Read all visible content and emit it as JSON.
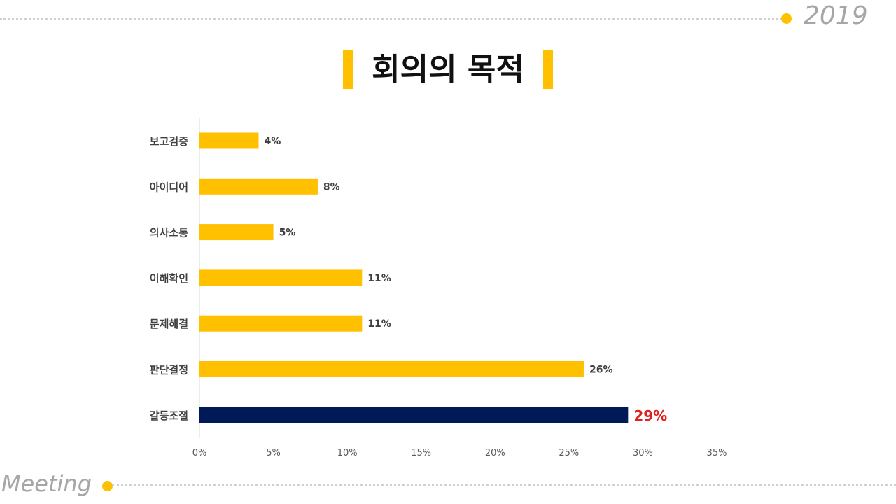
{
  "header": {
    "year": "2019",
    "title": "회의의 목적"
  },
  "footer": {
    "label": "Meeting"
  },
  "colors": {
    "accent": "#ffc000",
    "highlight_bar": "#001a57",
    "highlight_label": "#e0201f",
    "decoration_gray": "#a6a6a6"
  },
  "chart_data": {
    "type": "bar",
    "orientation": "horizontal",
    "categories": [
      "보고검증",
      "아이디어",
      "의사소통",
      "이해확인",
      "문제해결",
      "판단결정",
      "갈등조절"
    ],
    "values": [
      4,
      8,
      5,
      11,
      11,
      26,
      29
    ],
    "value_labels": [
      "4%",
      "8%",
      "5%",
      "11%",
      "11%",
      "26%",
      "29%"
    ],
    "highlight_index": 6,
    "xlim": [
      0,
      35
    ],
    "xticks": [
      0,
      5,
      10,
      15,
      20,
      25,
      30,
      35
    ],
    "xtick_labels": [
      "0%",
      "5%",
      "10%",
      "15%",
      "20%",
      "25%",
      "30%",
      "35%"
    ],
    "grid": false,
    "legend": "none"
  }
}
